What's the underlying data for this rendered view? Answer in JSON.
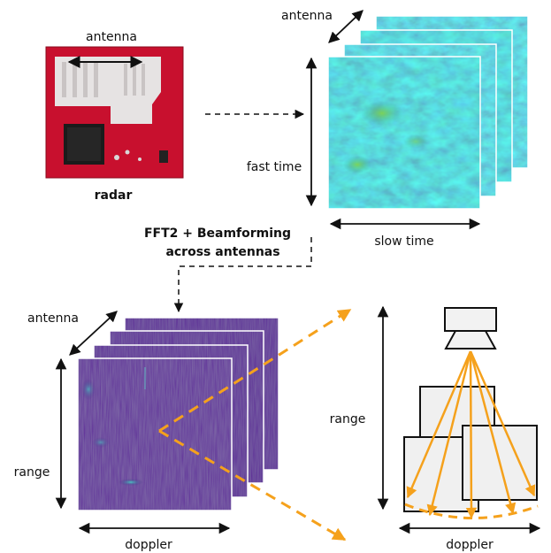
{
  "labels": {
    "radar_antenna": "antenna",
    "radar": "radar",
    "raw_antenna": "antenna",
    "fast_time": "fast time",
    "slow_time": "slow time",
    "processing_line1": "FFT2 + Beamforming",
    "processing_line2": "across antennas",
    "rd_antenna": "antenna",
    "rd_range": "range",
    "rd_doppler": "doppler",
    "scene_range": "range",
    "scene_doppler": "doppler"
  },
  "colors": {
    "arrow_orange": "#f5a11c",
    "raw_map_base": "#3b6a8f",
    "rd_map_base": "#3a167a",
    "radar_board": "#c8102e",
    "box_fill": "#f0f0f0"
  },
  "icons": {
    "sensor": "radar-sensor-icon",
    "board": "radar-board-photo"
  }
}
